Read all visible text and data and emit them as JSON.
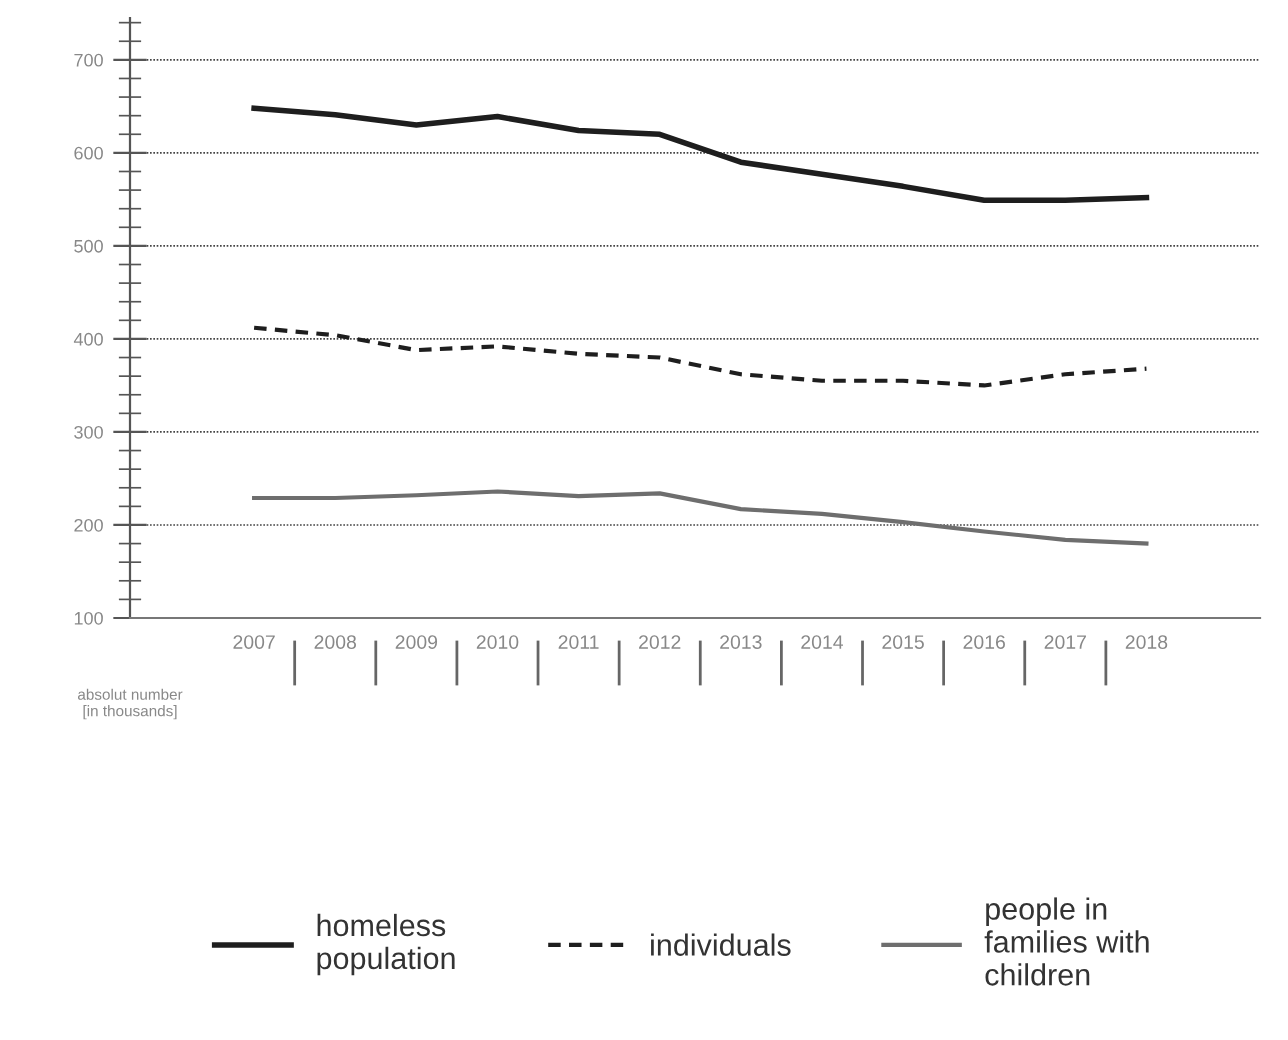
{
  "chart_data": {
    "type": "line",
    "categories": [
      "2007",
      "2008",
      "2009",
      "2010",
      "2011",
      "2012",
      "2013",
      "2014",
      "2015",
      "2016",
      "2017",
      "2018"
    ],
    "series": [
      {
        "name": "homeless\npopulation",
        "color": "#1e1e1e",
        "line_style": "solid",
        "values": [
          648,
          641,
          630,
          639,
          624,
          620,
          590,
          577,
          564,
          549,
          549,
          552
        ]
      },
      {
        "name": "individuals",
        "color": "#1e1e1e",
        "line_style": "dashed",
        "values": [
          412,
          404,
          388,
          392,
          384,
          380,
          362,
          355,
          355,
          350,
          362,
          368
        ]
      },
      {
        "name": "people in\nfamilies with\nchildren",
        "color": "#6e6e6e",
        "line_style": "solid",
        "values": [
          229,
          229,
          232,
          236,
          231,
          234,
          217,
          212,
          203,
          193,
          184,
          180
        ]
      }
    ],
    "ylim": [
      100,
      745
    ],
    "yticks": [
      100,
      200,
      300,
      400,
      500,
      600,
      700
    ],
    "grid": "y",
    "legend": "bottom",
    "marker": "none",
    "annotations": [
      "absolut number\n[in thousands]"
    ]
  }
}
